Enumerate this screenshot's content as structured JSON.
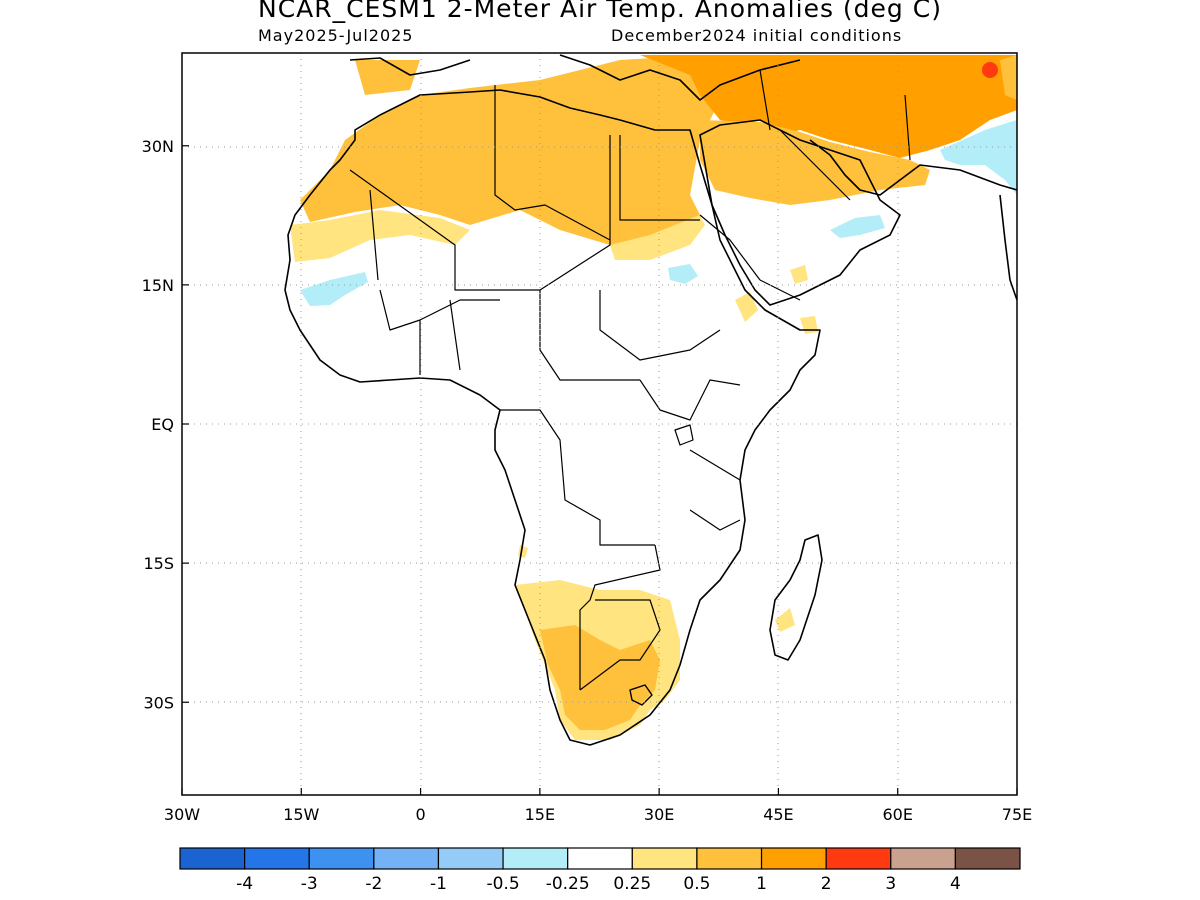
{
  "header": {
    "title": "NCAR_CESM1 2-Meter Air Temp. Anomalies (deg C)",
    "subtitle_left": "May2025-Jul2025",
    "subtitle_right": "December2024 initial conditions"
  },
  "map": {
    "region": "Africa",
    "lon_range": [
      -30,
      75
    ],
    "lat_range": [
      -40,
      40
    ],
    "lon_ticks": [
      {
        "value": -30,
        "label": "30W"
      },
      {
        "value": -15,
        "label": "15W"
      },
      {
        "value": 0,
        "label": "0"
      },
      {
        "value": 15,
        "label": "15E"
      },
      {
        "value": 30,
        "label": "30E"
      },
      {
        "value": 45,
        "label": "45E"
      },
      {
        "value": 60,
        "label": "60E"
      },
      {
        "value": 75,
        "label": "75E"
      }
    ],
    "lat_ticks": [
      {
        "value": 30,
        "label": "30N"
      },
      {
        "value": 15,
        "label": "15N"
      },
      {
        "value": 0,
        "label": "EQ"
      },
      {
        "value": -15,
        "label": "15S"
      },
      {
        "value": -30,
        "label": "30S"
      }
    ],
    "gridlines": "dotted"
  },
  "colorbar": {
    "colors": [
      "#1a63d1",
      "#2375e8",
      "#3d91f0",
      "#73b3f5",
      "#95cbf7",
      "#b3edf7",
      "#ffffff",
      "#ffe47f",
      "#ffc13c",
      "#ff9f00",
      "#ff3a10",
      "#caa08e",
      "#7a5246"
    ],
    "labels": [
      "-4",
      "-3",
      "-2",
      "-1",
      "-0.5",
      "-0.25",
      "0.25",
      "0.5",
      "1",
      "2",
      "3",
      "4"
    ]
  }
}
